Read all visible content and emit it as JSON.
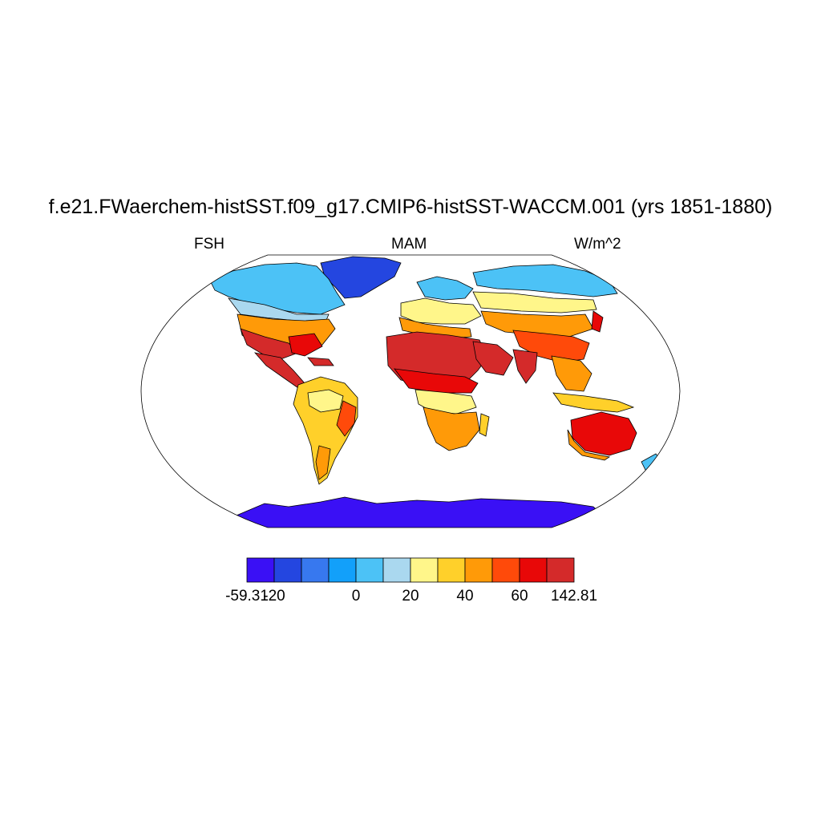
{
  "title": "f.e21.FWaerchem-histSST.f09_g17.CMIP6-histSST-WACCM.001 (yrs 1851-1880)",
  "left_label": "FSH",
  "center_label": "MAM",
  "right_label": "W/m^2",
  "colorbar": {
    "colors": [
      "#3a10f5",
      "#2446e0",
      "#3778ef",
      "#12a0fa",
      "#4cc2f6",
      "#aad8ef",
      "#fff68a",
      "#ffd02a",
      "#ff9a08",
      "#ff4a0a",
      "#e80808",
      "#d42a2a"
    ],
    "labels": [
      "-59.31",
      "-20",
      "0",
      "20",
      "40",
      "60",
      "142.81"
    ],
    "label_boundary_index": [
      0,
      1,
      4,
      6,
      8,
      10,
      12
    ]
  },
  "legend_colors": {
    "ocean": "#ffffff",
    "coastline": "#000000"
  }
}
